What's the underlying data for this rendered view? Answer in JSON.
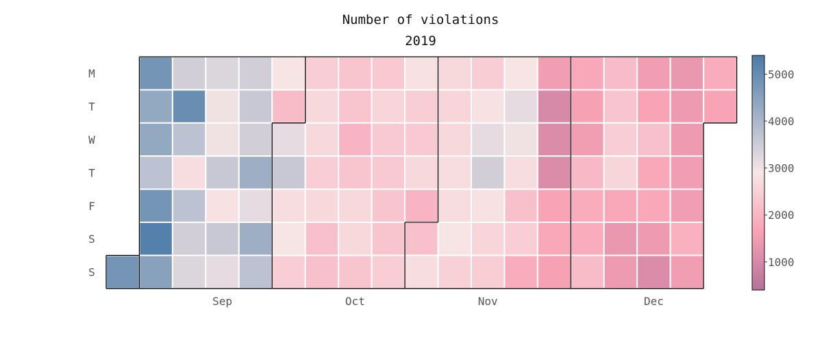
{
  "chart_data": {
    "type": "heatmap",
    "title": "Number of violations",
    "subtitle": "2019",
    "weekday_labels": [
      "M",
      "T",
      "W",
      "T",
      "F",
      "S",
      "S"
    ],
    "month_labels": [
      "Sep",
      "Oct",
      "Nov",
      "Dec"
    ],
    "colorbar_ticks": [
      5000,
      4000,
      3000,
      2000,
      1000
    ],
    "color_range": [
      400,
      5400
    ],
    "color_stops": [
      "#b5729a",
      "#f9a3b5",
      "#f7e6e6",
      "#4a7ba7"
    ],
    "grid": false,
    "start_date": "2019-08-25",
    "end_date": "2019-12-29",
    "weeks": [
      [
        null,
        null,
        null,
        null,
        null,
        null,
        5000
      ],
      [
        5000,
        4700,
        4700,
        4300,
        5000,
        5300,
        4800
      ],
      [
        4100,
        5100,
        4300,
        3500,
        4300,
        4100,
        4000
      ],
      [
        4000,
        3800,
        3800,
        4200,
        3600,
        4200,
        3900
      ],
      [
        4100,
        4200,
        4100,
        4600,
        3900,
        4600,
        4300
      ],
      [
        3700,
        2700,
        3900,
        4200,
        3500,
        3700,
        3100
      ],
      [
        3100,
        3400,
        3400,
        3100,
        3400,
        2800,
        2800
      ],
      [
        2900,
        2900,
        2500,
        2900,
        3400,
        3400,
        2900
      ],
      [
        3000,
        3300,
        3000,
        3000,
        2900,
        2900,
        3100
      ],
      [
        3600,
        3100,
        3000,
        3400,
        2500,
        2800,
        3500
      ],
      [
        3400,
        3300,
        3400,
        3500,
        3500,
        3700,
        3200
      ],
      [
        3100,
        3600,
        3900,
        4100,
        3600,
        3300,
        3100
      ],
      [
        3700,
        3900,
        3800,
        3500,
        2800,
        3100,
        2300
      ],
      [
        1900,
        1200,
        1300,
        1300,
        2100,
        2200,
        2000
      ],
      [
        2200,
        2000,
        1900,
        2600,
        2300,
        2300,
        2700
      ],
      [
        2700,
        2900,
        3100,
        3300,
        2200,
        1700,
        1800
      ],
      [
        1900,
        2100,
        2800,
        2200,
        2200,
        1800,
        1300
      ],
      [
        1700,
        1800,
        1800,
        1900,
        1900,
        2400,
        1900
      ],
      [
        2300,
        2100,
        null,
        null,
        null,
        null,
        null
      ]
    ]
  }
}
